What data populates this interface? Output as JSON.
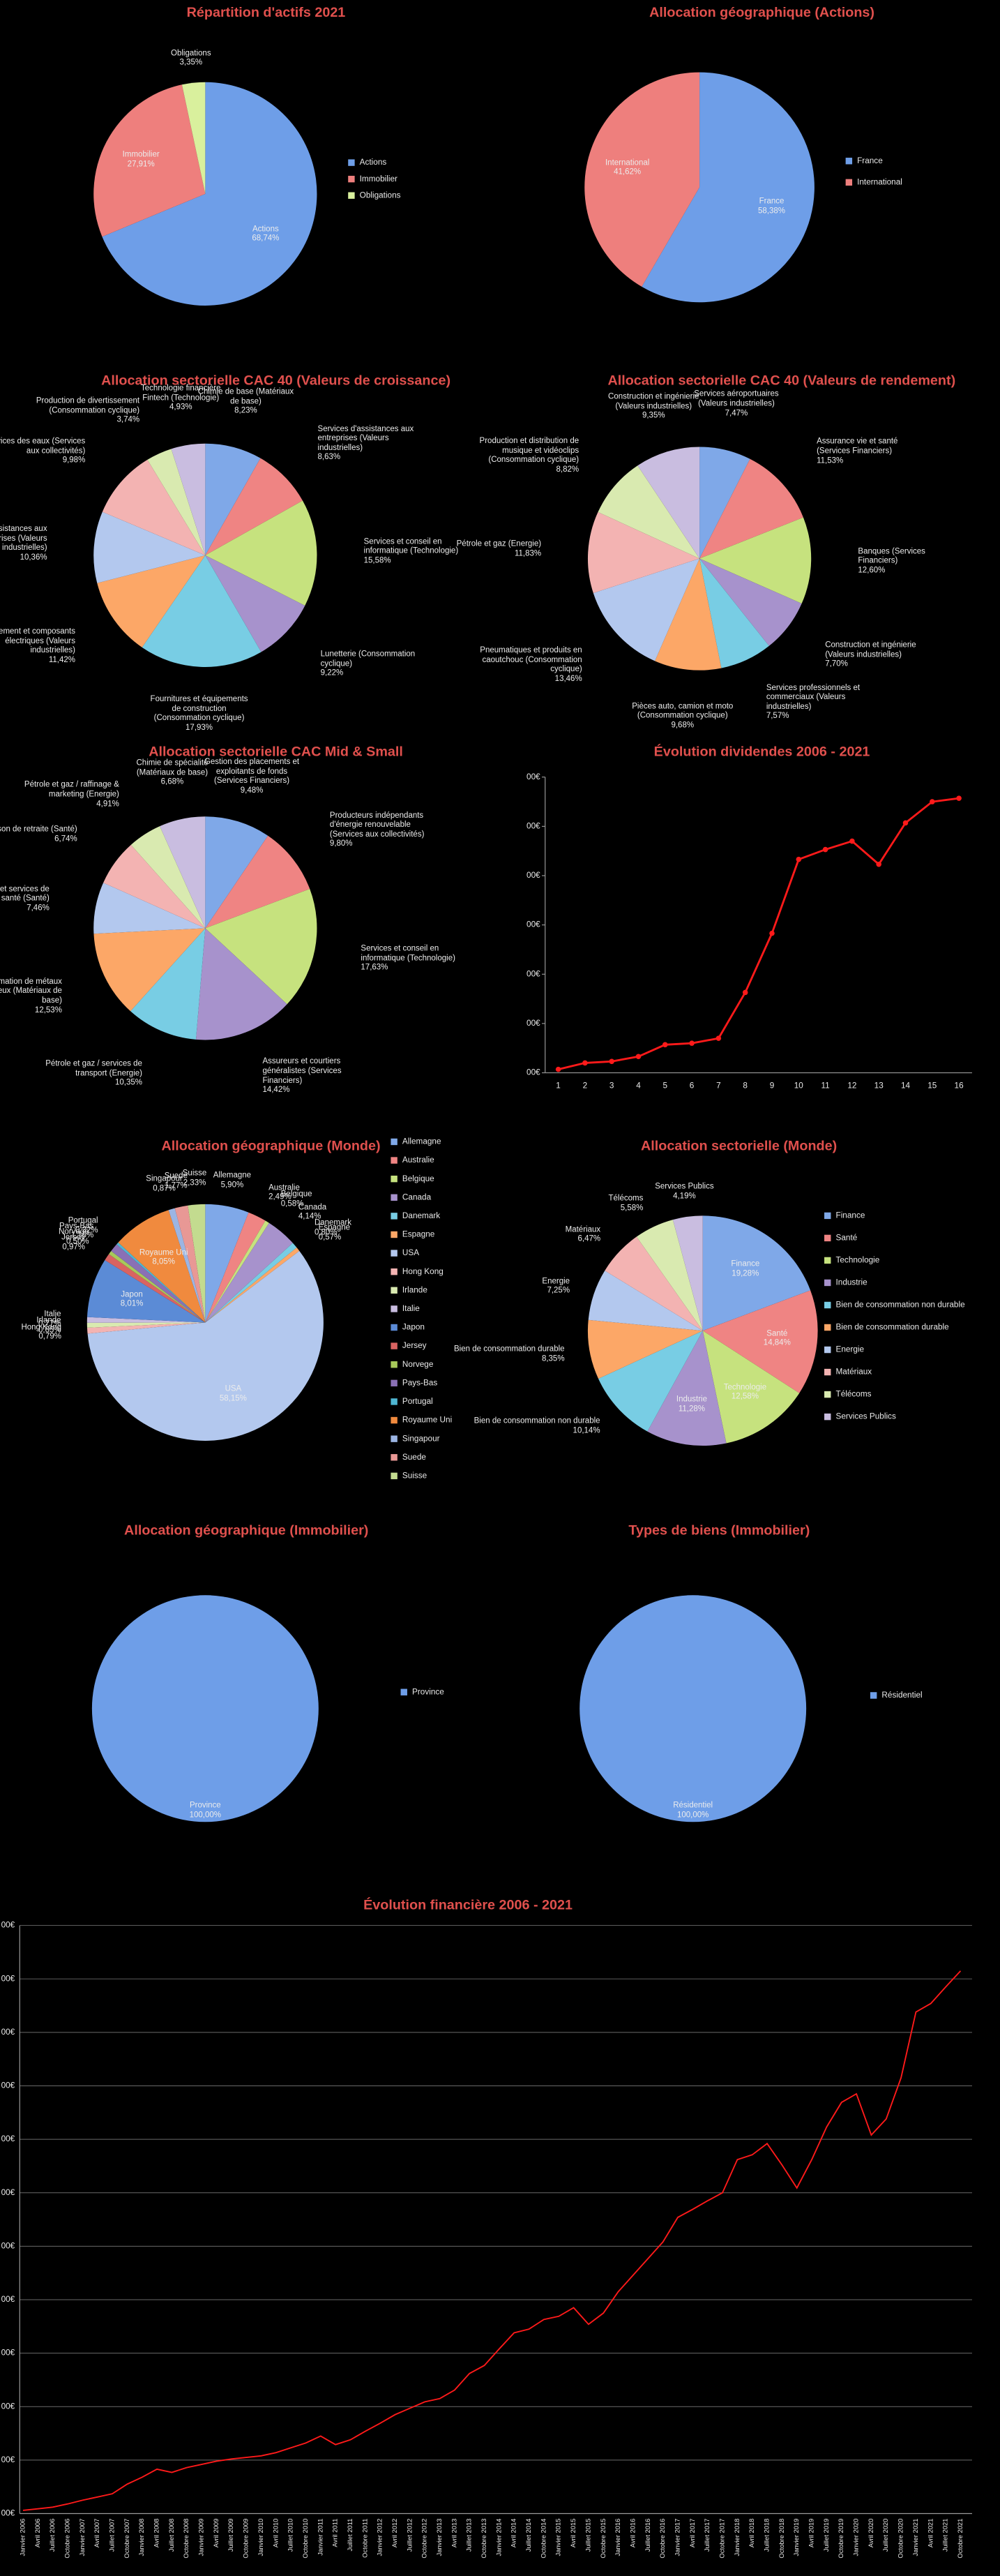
{
  "chart_data": [
    {
      "type": "pie",
      "title": "Répartition d'actifs 2021",
      "legend": true,
      "categories": [
        "Actions",
        "Immobilier",
        "Obligations"
      ],
      "values": [
        68.74,
        27.91,
        3.35
      ],
      "value_labels": [
        "68,74%",
        "27,91%",
        "3,35%"
      ],
      "colors": [
        "#6e9ee8",
        "#ee7f7d",
        "#d9f09d"
      ]
    },
    {
      "type": "pie",
      "title": "Allocation géographique (Actions)",
      "legend": true,
      "categories": [
        "France",
        "International"
      ],
      "values": [
        58.38,
        41.62
      ],
      "value_labels": [
        "58,38%",
        "41,62%"
      ],
      "colors": [
        "#6e9ee8",
        "#ee7f7d"
      ]
    },
    {
      "type": "pie",
      "title": "Allocation sectorielle CAC 40 (Valeurs de croissance)",
      "legend": false,
      "categories": [
        "Chimie de base (Matériaux de base)",
        "Services d'assistances aux entreprises (Valeurs industrielles)",
        "Services et conseil en informatique (Technologie)",
        "Lunetterie (Consommation cyclique)",
        "Fournitures et équipements de construction (Consommation cyclique)",
        "Equipement et composants électriques (Valeurs industrielles)",
        "Services d'assistances aux entreprises (Valeurs industrielles)",
        "Services des eaux (Services aux collectivités)",
        "Production de divertissement (Consommation cyclique)",
        "Technologie financière Fintech (Technologie)"
      ],
      "values": [
        8.23,
        8.63,
        15.58,
        9.22,
        17.93,
        11.42,
        10.36,
        9.98,
        3.74,
        4.93
      ],
      "value_labels": [
        "8,23%",
        "8,63%",
        "15,58%",
        "9,22%",
        "17,93%",
        "11,42%",
        "10,36%",
        "9,98%",
        "3,74%",
        "4,93%"
      ],
      "colors": [
        "#7fa8e8",
        "#ef8483",
        "#c6e27e",
        "#a792cc",
        "#78cde4",
        "#fca767",
        "#b3c8ee",
        "#f3b3b2",
        "#d9eab0",
        "#c9bde0"
      ]
    },
    {
      "type": "pie",
      "title": "Allocation sectorielle CAC 40 (Valeurs de rendement)",
      "legend": false,
      "categories": [
        "Services aéroportuaires (Valeurs industrielles)",
        "Assurance vie et santé (Services Financiers)",
        "Banques (Services Financiers)",
        "Construction et ingénierie (Valeurs industrielles)",
        "Services professionnels et commerciaux (Valeurs industrielles)",
        "Pièces auto, camion et moto (Consommation cyclique)",
        "Pneumatiques et produits en caoutchouc (Consommation cyclique)",
        "Pétrole et gaz (Energie)",
        "Production et distribution de musique et vidéoclips (Consommation cyclique)",
        "Construction et ingénierie (Valeurs industrielles)"
      ],
      "values": [
        7.47,
        11.53,
        12.6,
        7.7,
        7.57,
        9.68,
        13.46,
        11.83,
        8.82,
        9.35
      ],
      "value_labels": [
        "7,47%",
        "11,53%",
        "12,60%",
        "7,70%",
        "7,57%",
        "9,68%",
        "13,46%",
        "11,83%",
        "8,82%",
        "9,35%"
      ],
      "colors": [
        "#7fa8e8",
        "#ef8483",
        "#c6e27e",
        "#a792cc",
        "#78cde4",
        "#fca767",
        "#b3c8ee",
        "#f3b3b2",
        "#d9eab0",
        "#c9bde0"
      ]
    },
    {
      "type": "pie",
      "title": "Allocation sectorielle CAC Mid & Small",
      "legend": false,
      "categories": [
        "Gestion des placements et exploitants de fonds (Services Financiers)",
        "Producteurs indépendants d'énergie renouvelable (Services aux collectivités)",
        "Services et conseil en informatique (Technologie)",
        "Assureurs et courtiers généralistes (Services Financiers)",
        "Pétrole et gaz / services de transport (Energie)",
        "Transformation de métaux non ferreux (Matériaux de base)",
        "Prestataires et services de santé (Santé)",
        "Maison de retraite (Santé)",
        "Pétrole et gaz / raffinage & marketing (Energie)",
        "Chimie de spécialité (Matériaux de base)"
      ],
      "values": [
        9.48,
        9.8,
        17.63,
        14.42,
        10.35,
        12.53,
        7.46,
        6.74,
        4.91,
        6.68
      ],
      "value_labels": [
        "9,48%",
        "9,80%",
        "17,63%",
        "14,42%",
        "10,35%",
        "12,53%",
        "7,46%",
        "6,74%",
        "4,91%",
        "6,68%"
      ],
      "colors": [
        "#7fa8e8",
        "#ef8483",
        "#c6e27e",
        "#a792cc",
        "#78cde4",
        "#fca767",
        "#b3c8ee",
        "#f3b3b2",
        "#d9eab0",
        "#c9bde0"
      ]
    },
    {
      "type": "line",
      "title": "Évolution dividendes 2006 - 2021",
      "markers": true,
      "grid": false,
      "categories": [
        "1",
        "2",
        "3",
        "4",
        "5",
        "6",
        "7",
        "8",
        "9",
        "10",
        "11",
        "12",
        "13",
        "14",
        "15",
        "16"
      ],
      "values": [
        7,
        20,
        23,
        33,
        57,
        60,
        70,
        163,
        283,
        433,
        453,
        470,
        423,
        507,
        550,
        557
      ],
      "color": "#ff1a1a",
      "ylim": [
        0,
        600
      ],
      "yticks": [
        {
          "value": 0,
          "label": "00€"
        },
        {
          "value": 100,
          "label": "00€"
        },
        {
          "value": 200,
          "label": "00€"
        },
        {
          "value": 300,
          "label": "00€"
        },
        {
          "value": 400,
          "label": "00€"
        },
        {
          "value": 500,
          "label": "00€"
        },
        {
          "value": 600,
          "label": "00€"
        }
      ]
    },
    {
      "type": "pie",
      "title": "Allocation géographique (Monde)",
      "legend": true,
      "categories": [
        "Allemagne",
        "Australie",
        "Belgique",
        "Canada",
        "Danemark",
        "Espagne",
        "USA",
        "Hong Kong",
        "Irlande",
        "Italie",
        "Japon",
        "Jersey",
        "Norvege",
        "Pays-Bas",
        "Portugal",
        "Royaume Uni",
        "Singapour",
        "Suede",
        "Suisse"
      ],
      "values": [
        5.9,
        2.49,
        0.58,
        4.14,
        0.8,
        0.57,
        58.15,
        0.79,
        0.65,
        0.77,
        8.01,
        0.97,
        0.5,
        1.16,
        0.32,
        8.05,
        0.87,
        1.77,
        2.33
      ],
      "value_labels": [
        "5,90%",
        "2,49%",
        "0,58%",
        "4,14%",
        "0,80%",
        "0,57%",
        "58,15%",
        "0,79%",
        "0,65%",
        "0,77%",
        "8,01%",
        "0,97%",
        "0,50%",
        "1,16%",
        "0,32%",
        "8,05%",
        "0,87%",
        "1,77%",
        "2,33%"
      ],
      "colors": [
        "#7fa8e8",
        "#ef8483",
        "#c6e27e",
        "#a792cc",
        "#78cde4",
        "#fca767",
        "#b3c8ee",
        "#f3b3b2",
        "#d9eab0",
        "#c9bde0",
        "#5b8bd6",
        "#d96361",
        "#a7c95a",
        "#8a70b5",
        "#4fb6d2",
        "#f08a3e",
        "#9bb5e3",
        "#e89895",
        "#c3db8f"
      ]
    },
    {
      "type": "pie",
      "title": "Allocation sectorielle (Monde)",
      "legend": true,
      "categories": [
        "Finance",
        "Santé",
        "Technologie",
        "Industrie",
        "Bien de consommation non durable",
        "Bien de consommation durable",
        "Energie",
        "Matériaux",
        "Télécoms",
        "Services Publics"
      ],
      "values": [
        19.28,
        14.84,
        12.58,
        11.28,
        10.14,
        8.35,
        7.25,
        6.47,
        5.58,
        4.19
      ],
      "value_labels": [
        "19,28%",
        "14,84%",
        "12,58%",
        "11,28%",
        "10,14%",
        "8,35%",
        "7,25%",
        "6,47%",
        "5,58%",
        "4,19%"
      ],
      "colors": [
        "#7fa8e8",
        "#ef8483",
        "#c6e27e",
        "#a792cc",
        "#78cde4",
        "#fca767",
        "#b3c8ee",
        "#f3b3b2",
        "#d9eab0",
        "#c9bde0"
      ]
    },
    {
      "type": "pie",
      "title": "Allocation géographique (Immobilier)",
      "legend": true,
      "categories": [
        "Province"
      ],
      "values": [
        100
      ],
      "value_labels": [
        "100,00%"
      ],
      "colors": [
        "#6e9ee8"
      ]
    },
    {
      "type": "pie",
      "title": "Types de biens (Immobilier)",
      "legend": true,
      "categories": [
        "Résidentiel"
      ],
      "values": [
        100
      ],
      "value_labels": [
        "100,00%"
      ],
      "colors": [
        "#6e9ee8"
      ]
    },
    {
      "type": "line",
      "title": "Évolution financière 2006 - 2021",
      "markers": false,
      "grid": true,
      "categories": [
        "Janvier 2006",
        "Avril 2006",
        "Juillet 2006",
        "Octobre 2006",
        "Janvier 2007",
        "Avril 2007",
        "Juillet 2007",
        "Octobre 2007",
        "Janvier 2008",
        "Avril 2008",
        "Juillet 2008",
        "Octobre 2008",
        "Janvier 2009",
        "Avril 2009",
        "Juillet 2009",
        "Octobre 2009",
        "Janvier 2010",
        "Avril 2010",
        "Juillet 2010",
        "Octobre 2010",
        "Janvier 2011",
        "Avril 2011",
        "Juillet 2011",
        "Octobre 2011",
        "Janvier 2012",
        "Avril 2012",
        "Juillet 2012",
        "Octobre 2012",
        "Janvier 2013",
        "Avril 2013",
        "Juillet 2013",
        "Octobre 2013",
        "Janvier 2014",
        "Avril 2014",
        "Juillet 2014",
        "Octobre 2014",
        "Janvier 2015",
        "Avril 2015",
        "Juillet 2015",
        "Octobre 2015",
        "Janvier 2016",
        "Avril 2016",
        "Juillet 2016",
        "Octobre 2016",
        "Janvier 2017",
        "Avril 2017",
        "Juillet 2017",
        "Octobre 2017",
        "Janvier 2018",
        "Avril 2018",
        "Juillet 2018",
        "Octobre 2018",
        "Janvier 2019",
        "Avril 2019",
        "Juillet 2019",
        "Octobre 2019",
        "Janvier 2020",
        "Avril 2020",
        "Juillet 2020",
        "Octobre 2020",
        "Janvier 2021",
        "Avril 2021",
        "Juillet 2021",
        "Octobre 2021"
      ],
      "values": [
        0.6,
        0.9,
        1.2,
        1.8,
        2.5,
        3.1,
        3.7,
        5.5,
        6.8,
        8.3,
        7.7,
        8.6,
        9.2,
        9.8,
        10.2,
        10.5,
        10.8,
        11.4,
        12.3,
        13.2,
        14.5,
        12.9,
        13.8,
        15.4,
        16.9,
        18.5,
        19.7,
        20.9,
        21.5,
        23.1,
        26.2,
        27.7,
        30.8,
        33.8,
        34.5,
        36.3,
        36.9,
        38.5,
        35.4,
        37.5,
        41.5,
        44.6,
        47.7,
        50.8,
        55.4,
        56.9,
        58.5,
        60,
        66.2,
        67.1,
        69.2,
        65.2,
        60.9,
        66.2,
        72.3,
        76.9,
        78.5,
        70.8,
        73.8,
        81.5,
        93.8,
        95.4,
        98.5,
        101.5
      ],
      "color": "#ff1a1a",
      "ylim": [
        0,
        110
      ],
      "yticks": [
        {
          "value": 0,
          "label": "00€"
        },
        {
          "value": 10,
          "label": "00€"
        },
        {
          "value": 20,
          "label": "00€"
        },
        {
          "value": 30,
          "label": "00€"
        },
        {
          "value": 40,
          "label": "00€"
        },
        {
          "value": 50,
          "label": "00€"
        },
        {
          "value": 60,
          "label": "00€"
        },
        {
          "value": 70,
          "label": "00€"
        },
        {
          "value": 80,
          "label": "00€"
        },
        {
          "value": 90,
          "label": "00€"
        },
        {
          "value": 100,
          "label": "00€"
        },
        {
          "value": 110,
          "label": "00€"
        }
      ]
    }
  ]
}
